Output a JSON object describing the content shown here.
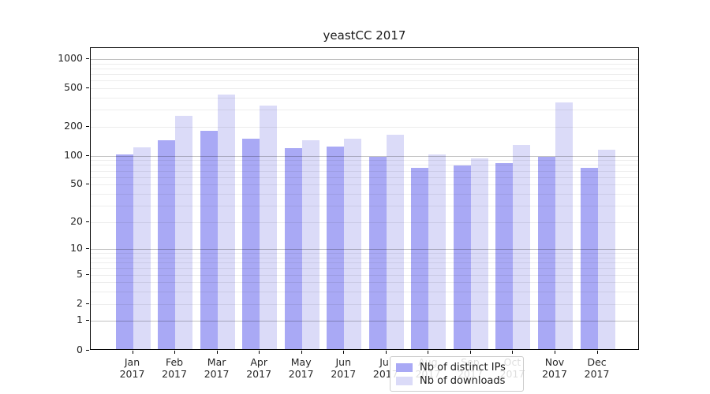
{
  "figure": {
    "background": "#ffffff"
  },
  "chart_data": {
    "type": "bar",
    "title": "yeastCC 2017",
    "xlabel": "",
    "ylabel": "",
    "y_scale": "log1p",
    "ylim": [
      0,
      1300
    ],
    "grid": "on",
    "legend_position": "bottom-center-inside",
    "months": [
      "Jan",
      "Feb",
      "Mar",
      "Apr",
      "May",
      "Jun",
      "Jul",
      "Aug",
      "Sep",
      "Oct",
      "Nov",
      "Dec"
    ],
    "year_label": "2017",
    "categories": [
      "Jan 2017",
      "Feb 2017",
      "Mar 2017",
      "Apr 2017",
      "May 2017",
      "Jun 2017",
      "Jul 2017",
      "Aug 2017",
      "Sep 2017",
      "Oct 2017",
      "Nov 2017",
      "Dec 2017"
    ],
    "series": [
      {
        "name": "Nb of distinct IPs",
        "color": "#a9a9f5",
        "values": [
          100,
          140,
          175,
          146,
          117,
          122,
          95,
          73,
          77,
          82,
          94,
          73
        ]
      },
      {
        "name": "Nb of downloads",
        "color": "#dbdbf8",
        "values": [
          120,
          250,
          420,
          320,
          140,
          145,
          160,
          101,
          91,
          125,
          345,
          113
        ]
      }
    ],
    "y_ticks": [
      0,
      1,
      2,
      5,
      10,
      20,
      50,
      100,
      200,
      500,
      1000
    ],
    "gridlines": {
      "major_values": [
        1,
        10,
        100,
        1000
      ],
      "minor_values": [
        2,
        3,
        4,
        5,
        6,
        7,
        8,
        9,
        20,
        30,
        40,
        50,
        60,
        70,
        80,
        90,
        200,
        300,
        400,
        500,
        600,
        700,
        800,
        900
      ],
      "major_color": "rgba(0,0,0,0.24)",
      "minor_color": "rgba(0,0,0,0.07)"
    },
    "spine_color": "#000000"
  }
}
